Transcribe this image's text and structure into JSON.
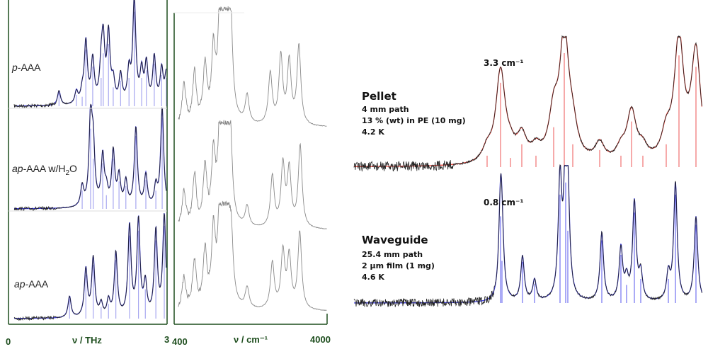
{
  "chart_data": [
    {
      "type": "line",
      "xlabel": "ν / THz",
      "xlim": [
        0,
        3
      ],
      "ticks": [
        "0",
        "3"
      ],
      "fit_color": "#3a3adf",
      "stick_color": "#a8a8f0",
      "data_color": "#222222",
      "series": [
        {
          "label_parts": [
            {
              "t": "p",
              "i": true
            },
            {
              "t": "-AAA"
            }
          ],
          "peaks": [
            [
              0.96,
              0.14
            ],
            [
              1.29,
              0.12
            ],
            [
              1.4,
              0.1
            ],
            [
              1.47,
              0.6
            ],
            [
              1.6,
              0.42
            ],
            [
              1.76,
              0.3
            ],
            [
              1.8,
              0.56
            ],
            [
              1.9,
              0.66
            ],
            [
              1.99,
              0.2
            ],
            [
              2.13,
              0.27
            ],
            [
              2.29,
              0.3
            ],
            [
              2.39,
              1.0
            ],
            [
              2.53,
              0.3
            ],
            [
              2.62,
              0.38
            ],
            [
              2.77,
              0.45
            ],
            [
              2.91,
              0.33
            ],
            [
              3.0,
              0.3
            ]
          ]
        },
        {
          "label_parts": [
            {
              "t": "ap",
              "i": true
            },
            {
              "t": "-AAA w/H"
            },
            {
              "t": "2",
              "sub": true
            },
            {
              "t": "O"
            }
          ],
          "peaks": [
            [
              1.4,
              0.2
            ],
            [
              1.56,
              0.88
            ],
            [
              1.61,
              0.55
            ],
            [
              1.79,
              0.5
            ],
            [
              1.86,
              0.15
            ],
            [
              1.99,
              0.55
            ],
            [
              2.1,
              0.3
            ],
            [
              2.23,
              0.25
            ],
            [
              2.42,
              0.8
            ],
            [
              2.61,
              0.32
            ],
            [
              2.8,
              0.2
            ],
            [
              2.92,
              1.0
            ]
          ]
        },
        {
          "label_parts": [
            {
              "t": "ap",
              "i": true
            },
            {
              "t": "-AAA"
            }
          ],
          "peaks": [
            [
              1.16,
              0.2
            ],
            [
              1.47,
              0.45
            ],
            [
              1.61,
              0.55
            ],
            [
              1.76,
              0.12
            ],
            [
              1.9,
              0.15
            ],
            [
              2.04,
              0.6
            ],
            [
              2.3,
              0.85
            ],
            [
              2.47,
              0.9
            ],
            [
              2.6,
              0.3
            ],
            [
              2.8,
              0.8
            ],
            [
              2.96,
              0.95
            ]
          ]
        }
      ]
    },
    {
      "type": "line",
      "xlabel": "ν / cm⁻¹",
      "xlim": [
        400,
        4000
      ],
      "ticks": [
        "400",
        "4000"
      ],
      "data_color": "#8a8a8a",
      "series": [
        {
          "peaks": [
            [
              600,
              0.35
            ],
            [
              850,
              0.45
            ],
            [
              1100,
              0.5
            ],
            [
              1300,
              0.6
            ],
            [
              1450,
              0.8
            ],
            [
              1550,
              0.85
            ],
            [
              1620,
              1.0
            ],
            [
              1700,
              0.9
            ],
            [
              2100,
              0.25
            ],
            [
              2650,
              0.45
            ],
            [
              2900,
              0.6
            ],
            [
              3100,
              0.55
            ],
            [
              3330,
              0.7
            ]
          ]
        },
        {
          "peaks": [
            [
              600,
              0.35
            ],
            [
              850,
              0.5
            ],
            [
              1100,
              0.55
            ],
            [
              1300,
              0.65
            ],
            [
              1450,
              0.8
            ],
            [
              1550,
              1.0
            ],
            [
              1620,
              0.9
            ],
            [
              1700,
              0.7
            ],
            [
              2100,
              0.2
            ],
            [
              2700,
              0.5
            ],
            [
              2950,
              0.6
            ],
            [
              3100,
              0.55
            ],
            [
              3360,
              0.8
            ]
          ]
        },
        {
          "peaks": [
            [
              600,
              0.3
            ],
            [
              850,
              0.45
            ],
            [
              1100,
              0.55
            ],
            [
              1300,
              0.7
            ],
            [
              1450,
              0.85
            ],
            [
              1550,
              0.95
            ],
            [
              1620,
              1.0
            ],
            [
              1720,
              0.6
            ],
            [
              2100,
              0.2
            ],
            [
              2700,
              0.45
            ],
            [
              2950,
              0.55
            ],
            [
              3100,
              0.5
            ],
            [
              3350,
              0.75
            ]
          ]
        }
      ]
    },
    {
      "type": "line",
      "series": [
        {
          "name": "Pellet",
          "details": [
            "4 mm path",
            "13 % (wt) in PE (10 mg)",
            "4.2 K"
          ],
          "annotation": "3.3 cm⁻¹",
          "fit_color": "#e8453c",
          "stick_color": "#f07070"
        },
        {
          "name": "Waveguide",
          "details": [
            "25.4 mm path",
            "2 µm film (1 mg)",
            "4.6 K"
          ],
          "annotation": "0.8 cm⁻¹",
          "fit_color": "#3a3adf",
          "stick_color": "#7070f0"
        }
      ]
    }
  ]
}
